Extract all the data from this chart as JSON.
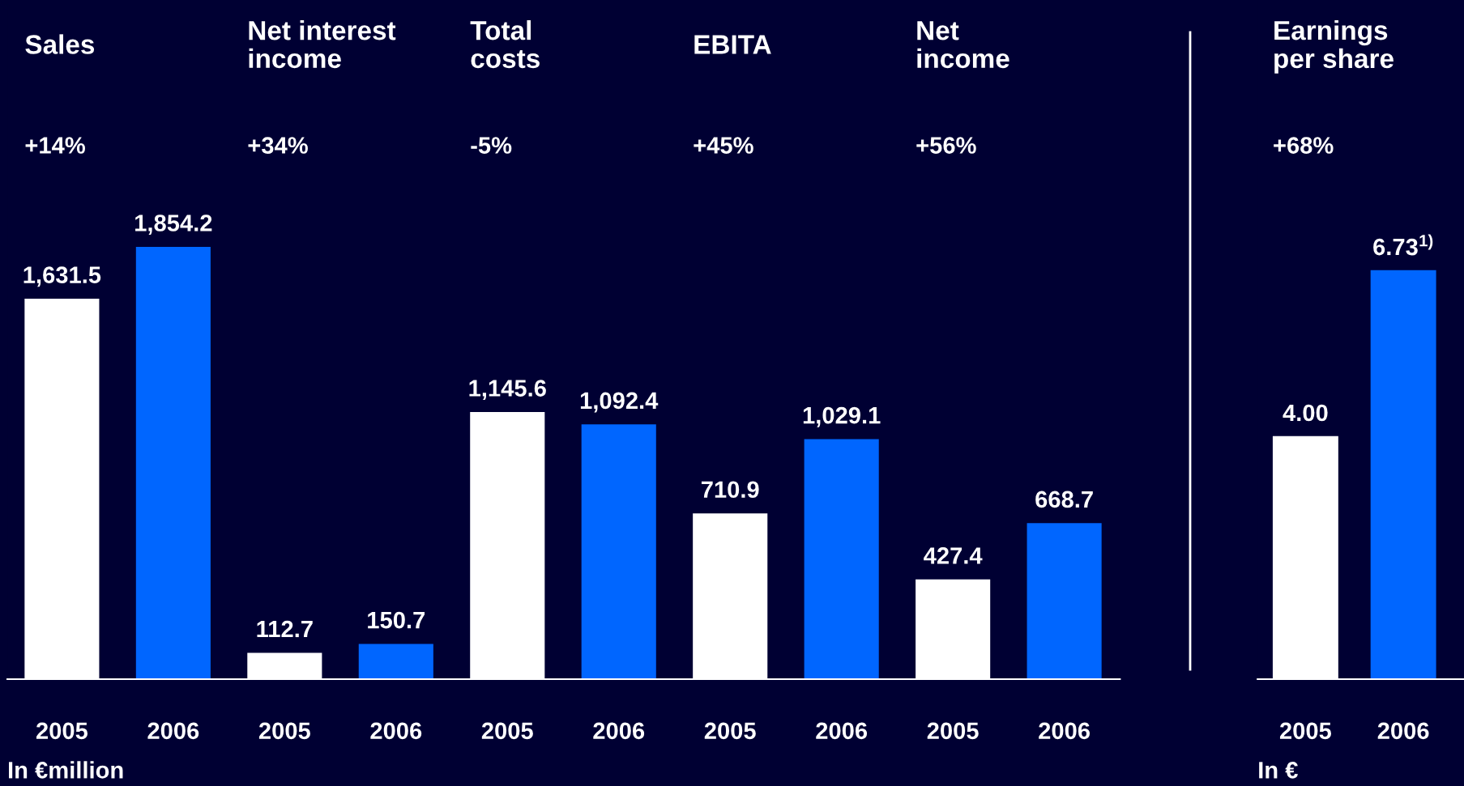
{
  "chart_data": [
    {
      "type": "bar",
      "categories": [
        "2005",
        "2006",
        "2005",
        "2006",
        "2005",
        "2006",
        "2005",
        "2006",
        "2005",
        "2006"
      ],
      "values": [
        1631.5,
        1854.2,
        112.7,
        150.7,
        1145.6,
        1092.4,
        710.9,
        1029.1,
        427.4,
        668.7
      ],
      "colors": [
        "#ffffff",
        "#0066ff",
        "#ffffff",
        "#0066ff",
        "#ffffff",
        "#0066ff",
        "#ffffff",
        "#0066ff",
        "#ffffff",
        "#0066ff"
      ],
      "value_labels": [
        "1,631.5",
        "1,854.2",
        "112.7",
        "150.7",
        "1,145.6",
        "1,092.4",
        "710.9",
        "1,029.1",
        "427.4",
        "668.7"
      ],
      "annotations": [
        "Sales",
        "+14%",
        "Net interest\nincome",
        "+34%",
        "Total\ncosts",
        "-5%",
        "EBITA",
        "+45%",
        "Net\nincome",
        "+56%",
        "In €million"
      ]
    },
    {
      "type": "bar",
      "categories": [
        "2005",
        "2006"
      ],
      "values": [
        4.0,
        6.73
      ],
      "colors": [
        "#ffffff",
        "#0066ff"
      ],
      "value_labels": [
        "4.00",
        "6.73$^{1)}$"
      ],
      "annotations": [
        "Earnings\nper share",
        "+68%",
        "In €"
      ]
    }
  ]
}
